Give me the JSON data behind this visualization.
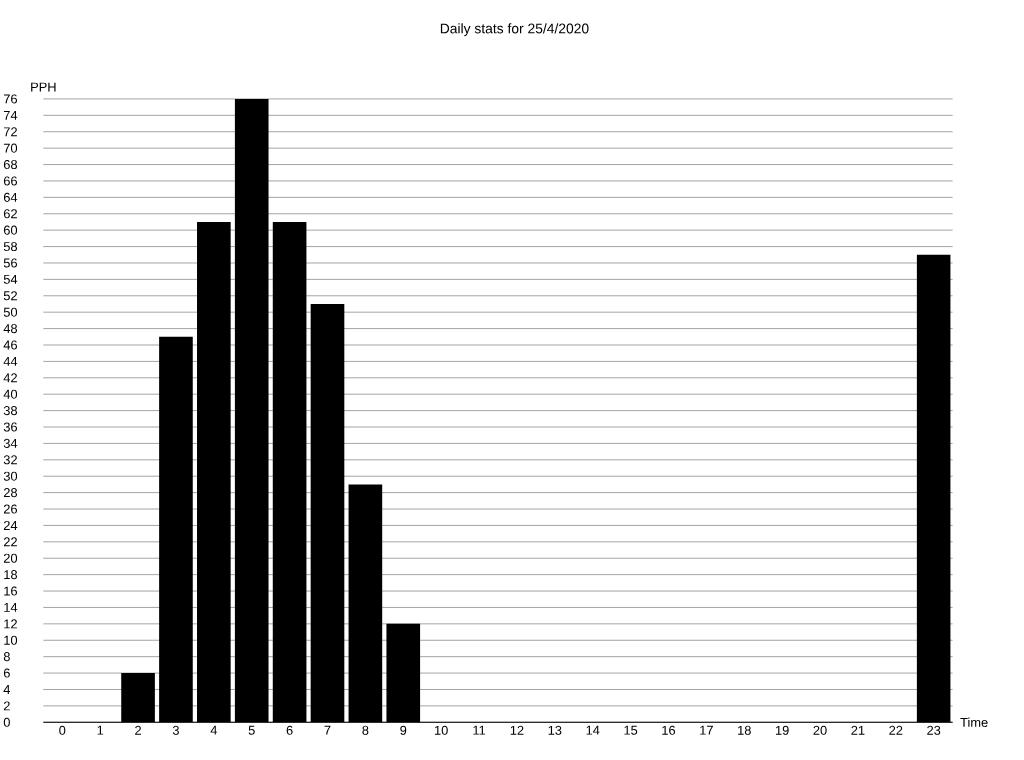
{
  "chart_data": {
    "type": "bar",
    "title": "Daily stats for 25/4/2020",
    "xlabel": "Time",
    "ylabel": "PPH",
    "categories": [
      "0",
      "1",
      "2",
      "3",
      "4",
      "5",
      "6",
      "7",
      "8",
      "9",
      "10",
      "11",
      "12",
      "13",
      "14",
      "15",
      "16",
      "17",
      "18",
      "19",
      "20",
      "21",
      "22",
      "23"
    ],
    "values": [
      0,
      0,
      6,
      47,
      61,
      76,
      61,
      51,
      29,
      12,
      0,
      0,
      0,
      0,
      0,
      0,
      0,
      0,
      0,
      0,
      0,
      0,
      0,
      57
    ],
    "color": "#000000",
    "ylim": [
      0,
      76
    ],
    "yticks": [
      0,
      2,
      4,
      6,
      8,
      10,
      12,
      14,
      16,
      18,
      20,
      22,
      24,
      26,
      28,
      30,
      32,
      34,
      36,
      38,
      40,
      42,
      44,
      46,
      48,
      50,
      52,
      54,
      56,
      58,
      60,
      62,
      64,
      66,
      68,
      70,
      72,
      74,
      76
    ],
    "grid": "y",
    "legend": false
  }
}
